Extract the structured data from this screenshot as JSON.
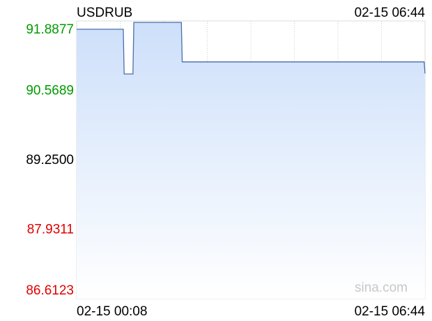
{
  "chart_data": {
    "type": "line",
    "title": "USDRUB",
    "updated": "02-15 06:44",
    "watermark": "sina.com",
    "x": [
      "02-15 00:08",
      "02-15 01:01",
      "02-15 01:02",
      "02-15 01:12",
      "02-15 01:13",
      "02-15 02:07",
      "02-15 02:08",
      "02-15 06:43",
      "02-15 06:44"
    ],
    "series": [
      {
        "name": "USDRUB",
        "color": "#4a6ea8",
        "values": [
          91.73,
          91.73,
          90.88,
          90.88,
          91.86,
          91.86,
          91.11,
          91.11,
          90.89
        ]
      }
    ],
    "ylim": [
      86.6123,
      91.8877
    ],
    "yticks": [
      {
        "value": 86.6123,
        "label": "86.6123"
      },
      {
        "value": 87.9311,
        "label": "87.9311"
      },
      {
        "value": 89.25,
        "label": "89.2500"
      },
      {
        "value": 90.5689,
        "label": "90.5689"
      },
      {
        "value": 91.8877,
        "label": "91.8877"
      }
    ],
    "ytick_colors": [
      "#e00000",
      "#e00000",
      "#000000",
      "#009900",
      "#009900"
    ],
    "grid": true
  }
}
